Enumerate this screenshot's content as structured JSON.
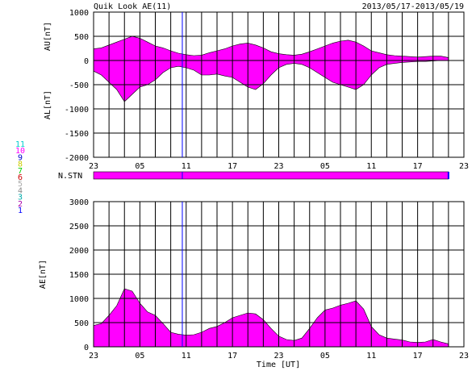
{
  "header": {
    "title": "Quik Look AE(11)",
    "date_range": "2013/05/17-2013/05/19"
  },
  "colors": {
    "fill": "#ff00ff",
    "grid": "#000000",
    "marker": "#0000ff"
  },
  "station_legend": [
    {
      "label": "11",
      "color": "#00cccc"
    },
    {
      "label": "10",
      "color": "#ff00ff"
    },
    {
      "label": "9",
      "color": "#0000cc"
    },
    {
      "label": "8",
      "color": "#cccc00"
    },
    {
      "label": "7",
      "color": "#00cc00"
    },
    {
      "label": "6",
      "color": "#cc0000"
    },
    {
      "label": "5",
      "color": "#aaaaaa"
    },
    {
      "label": "4",
      "color": "#888888"
    },
    {
      "label": "3",
      "color": "#00aaaa"
    },
    {
      "label": "2",
      "color": "#aa00aa"
    },
    {
      "label": "1",
      "color": "#0000ff"
    }
  ],
  "nstn_label": "N.STN",
  "chart_data": [
    {
      "type": "area",
      "name": "AU/AL",
      "ylabel_top": "AU[nT]",
      "ylabel_bottom": "AL[nT]",
      "ylim": [
        -2000,
        1000
      ],
      "yticks": [
        1000,
        500,
        0,
        -500,
        -1000,
        -1500,
        -2000
      ],
      "xticks": [
        "23",
        "05",
        "11",
        "17",
        "23",
        "05",
        "11",
        "17",
        "23"
      ],
      "x_hours_range": [
        0,
        48
      ],
      "grid": true,
      "x_hours": [
        0,
        1,
        2,
        3,
        4,
        5,
        6,
        7,
        8,
        9,
        10,
        11,
        12,
        13,
        14,
        15,
        16,
        17,
        18,
        19,
        20,
        21,
        22,
        23,
        24,
        25,
        26,
        27,
        28,
        29,
        30,
        31,
        32,
        33,
        34,
        35,
        36,
        37,
        38,
        39,
        40,
        41,
        42,
        43,
        44,
        45,
        46
      ],
      "au": [
        240,
        260,
        320,
        380,
        440,
        500,
        460,
        380,
        300,
        260,
        200,
        150,
        120,
        100,
        110,
        160,
        200,
        240,
        300,
        340,
        360,
        320,
        260,
        180,
        140,
        120,
        110,
        130,
        180,
        240,
        300,
        360,
        400,
        420,
        380,
        300,
        200,
        160,
        120,
        100,
        90,
        80,
        70,
        80,
        90,
        90,
        60
      ],
      "al": [
        -220,
        -300,
        -450,
        -600,
        -850,
        -700,
        -550,
        -500,
        -400,
        -250,
        -150,
        -120,
        -150,
        -200,
        -300,
        -300,
        -280,
        -320,
        -350,
        -450,
        -550,
        -600,
        -480,
        -300,
        -150,
        -80,
        -60,
        -80,
        -150,
        -250,
        -350,
        -450,
        -500,
        -550,
        -600,
        -500,
        -300,
        -150,
        -80,
        -60,
        -40,
        -30,
        -20,
        -20,
        -10,
        0,
        0
      ],
      "marker_x_hour": 11.5
    },
    {
      "type": "area",
      "name": "AE",
      "ylabel": "AE[nT]",
      "ylim": [
        0,
        3000
      ],
      "yticks": [
        3000,
        2500,
        2000,
        1500,
        1000,
        500,
        0
      ],
      "xticks": [
        "23",
        "05",
        "11",
        "17",
        "23",
        "05",
        "11",
        "17",
        "23"
      ],
      "xlabel": "Time [UT]",
      "x_hours_range": [
        0,
        48
      ],
      "grid": true,
      "x_hours": [
        0,
        1,
        2,
        3,
        4,
        5,
        6,
        7,
        8,
        9,
        10,
        11,
        12,
        13,
        14,
        15,
        16,
        17,
        18,
        19,
        20,
        21,
        22,
        23,
        24,
        25,
        26,
        27,
        28,
        29,
        30,
        31,
        32,
        33,
        34,
        35,
        36,
        37,
        38,
        39,
        40,
        41,
        42,
        43,
        44,
        45,
        46
      ],
      "values": [
        440,
        480,
        650,
        850,
        1200,
        1150,
        900,
        720,
        650,
        480,
        300,
        260,
        240,
        250,
        300,
        380,
        420,
        500,
        600,
        650,
        700,
        680,
        560,
        380,
        220,
        150,
        130,
        180,
        380,
        600,
        760,
        800,
        860,
        900,
        950,
        780,
        420,
        250,
        180,
        160,
        140,
        100,
        90,
        100,
        150,
        100,
        60
      ],
      "marker_x_hour": 11.5
    }
  ]
}
